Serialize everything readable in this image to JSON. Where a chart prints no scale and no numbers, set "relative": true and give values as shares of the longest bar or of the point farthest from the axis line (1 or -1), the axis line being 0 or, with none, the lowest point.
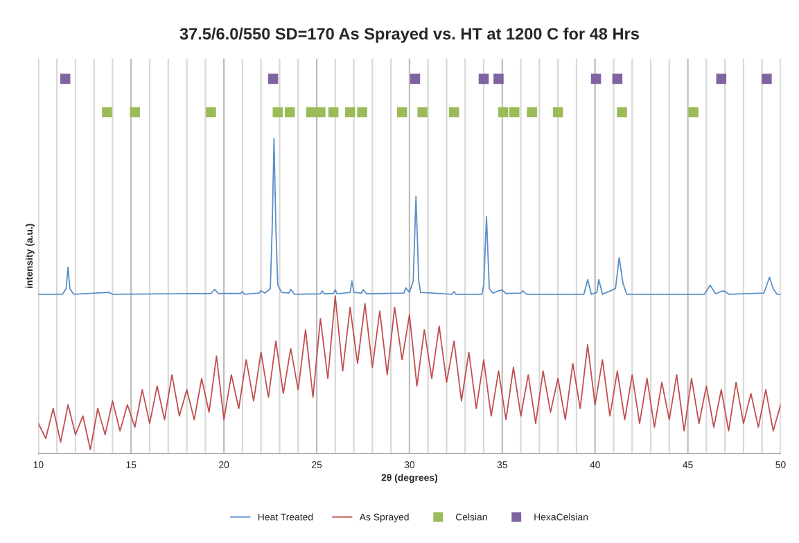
{
  "chart_data": {
    "type": "line",
    "title": "37.5/6.0/550 SD=170 As Sprayed vs. HT at 1200 C for 48 Hrs",
    "xlabel": "2θ (degrees)",
    "ylabel": "intensity (a.u.)",
    "relative": true,
    "xlim": [
      10,
      50
    ],
    "xticks": [
      10,
      {
        "value": 11,
        "label": null
      },
      {
        "value": 12,
        "label": null
      },
      {
        "value": 13,
        "label": null
      },
      {
        "value": 14,
        "label": null
      },
      15,
      {
        "value": 16,
        "label": null
      },
      {
        "value": 17,
        "label": null
      },
      {
        "value": 18,
        "label": null
      },
      {
        "value": 19,
        "label": null
      },
      20,
      {
        "value": 21,
        "label": null
      },
      {
        "value": 22,
        "label": null
      },
      {
        "value": 23,
        "label": null
      },
      {
        "value": 24,
        "label": null
      },
      25,
      {
        "value": 26,
        "label": null
      },
      {
        "value": 27,
        "label": null
      },
      {
        "value": 28,
        "label": null
      },
      {
        "value": 29,
        "label": null
      },
      30,
      {
        "value": 31,
        "label": null
      },
      {
        "value": 32,
        "label": null
      },
      {
        "value": 33,
        "label": null
      },
      {
        "value": 34,
        "label": null
      },
      35,
      {
        "value": 36,
        "label": null
      },
      {
        "value": 37,
        "label": null
      },
      {
        "value": 38,
        "label": null
      },
      {
        "value": 39,
        "label": null
      },
      40,
      {
        "value": 41,
        "label": null
      },
      {
        "value": 42,
        "label": null
      },
      {
        "value": 43,
        "label": null
      },
      {
        "value": 44,
        "label": null
      },
      45,
      {
        "value": 46,
        "label": null
      },
      {
        "value": 47,
        "label": null
      },
      {
        "value": 48,
        "label": null
      },
      {
        "value": 49,
        "label": null
      },
      50
    ],
    "grid": "x",
    "legend": "bottom",
    "series": [
      {
        "name": "Heat Treated",
        "color": "#5b8fc9",
        "x": [
          10,
          11.3,
          11.5,
          11.6,
          11.7,
          11.9,
          13.8,
          14,
          19.3,
          19.5,
          19.7,
          20.9,
          21.0,
          21.1,
          21.9,
          22.0,
          22.2,
          22.5,
          22.6,
          22.7,
          22.8,
          22.9,
          23.1,
          23.5,
          23.6,
          23.8,
          25.2,
          25.3,
          25.4,
          25.9,
          26.0,
          26.1,
          26.8,
          26.9,
          27.0,
          27.4,
          27.5,
          27.7,
          29.7,
          29.8,
          30.0,
          30.2,
          30.35,
          30.5,
          30.6,
          32.3,
          32.4,
          32.5,
          33.9,
          34.0,
          34.15,
          34.3,
          34.5,
          34.8,
          35.0,
          35.2,
          36.0,
          36.1,
          36.3,
          39.4,
          39.6,
          39.8,
          40.1,
          40.2,
          40.4,
          41.1,
          41.3,
          41.5,
          41.7,
          45.9,
          46.2,
          46.5,
          46.8,
          47.0,
          47.2,
          49.1,
          49.4,
          49.6,
          49.8,
          50
        ],
        "values": [
          0.425,
          0.425,
          0.44,
          0.497,
          0.44,
          0.425,
          0.43,
          0.425,
          0.427,
          0.438,
          0.427,
          0.427,
          0.432,
          0.425,
          0.428,
          0.435,
          0.428,
          0.44,
          0.6,
          0.841,
          0.6,
          0.45,
          0.43,
          0.428,
          0.438,
          0.425,
          0.426,
          0.434,
          0.426,
          0.427,
          0.437,
          0.426,
          0.43,
          0.46,
          0.43,
          0.428,
          0.437,
          0.426,
          0.428,
          0.442,
          0.43,
          0.46,
          0.686,
          0.46,
          0.43,
          0.425,
          0.432,
          0.425,
          0.425,
          0.45,
          0.632,
          0.44,
          0.428,
          0.434,
          0.436,
          0.427,
          0.428,
          0.434,
          0.425,
          0.425,
          0.464,
          0.425,
          0.43,
          0.464,
          0.425,
          0.44,
          0.523,
          0.455,
          0.425,
          0.425,
          0.449,
          0.426,
          0.433,
          0.433,
          0.425,
          0.428,
          0.47,
          0.44,
          0.425,
          0.425
        ]
      },
      {
        "name": "As Sprayed",
        "color": "#c0504d",
        "x": [
          10.0,
          10.4,
          10.8,
          11.2,
          11.6,
          12.0,
          12.4,
          12.8,
          13.2,
          13.6,
          14.0,
          14.4,
          14.8,
          15.2,
          15.6,
          16.0,
          16.4,
          16.8,
          17.2,
          17.6,
          18.0,
          18.4,
          18.8,
          19.2,
          19.6,
          20.0,
          20.4,
          20.8,
          21.2,
          21.6,
          22.0,
          22.4,
          22.8,
          23.2,
          23.6,
          24.0,
          24.4,
          24.8,
          25.2,
          25.6,
          26.0,
          26.4,
          26.8,
          27.2,
          27.6,
          28.0,
          28.4,
          28.8,
          29.2,
          29.6,
          30.0,
          30.4,
          30.8,
          31.2,
          31.6,
          32.0,
          32.4,
          32.8,
          33.2,
          33.6,
          34.0,
          34.4,
          34.8,
          35.2,
          35.6,
          36.0,
          36.4,
          36.8,
          37.2,
          37.6,
          38.0,
          38.4,
          38.8,
          39.2,
          39.6,
          40.0,
          40.4,
          40.8,
          41.2,
          41.6,
          42.0,
          42.4,
          42.8,
          43.2,
          43.6,
          44.0,
          44.4,
          44.8,
          45.2,
          45.6,
          46.0,
          46.4,
          46.8,
          47.2,
          47.6,
          48.0,
          48.4,
          48.8,
          49.2,
          49.6,
          50.0
        ],
        "values": [
          0.08,
          0.04,
          0.12,
          0.03,
          0.13,
          0.05,
          0.1,
          0.01,
          0.12,
          0.05,
          0.14,
          0.06,
          0.13,
          0.07,
          0.17,
          0.08,
          0.18,
          0.09,
          0.21,
          0.1,
          0.17,
          0.09,
          0.2,
          0.11,
          0.26,
          0.09,
          0.21,
          0.12,
          0.25,
          0.14,
          0.27,
          0.15,
          0.3,
          0.16,
          0.28,
          0.17,
          0.33,
          0.15,
          0.36,
          0.2,
          0.42,
          0.22,
          0.39,
          0.24,
          0.4,
          0.23,
          0.38,
          0.21,
          0.39,
          0.25,
          0.37,
          0.18,
          0.33,
          0.2,
          0.34,
          0.19,
          0.3,
          0.14,
          0.27,
          0.12,
          0.25,
          0.1,
          0.22,
          0.09,
          0.23,
          0.1,
          0.21,
          0.08,
          0.22,
          0.11,
          0.2,
          0.09,
          0.24,
          0.12,
          0.29,
          0.13,
          0.25,
          0.1,
          0.22,
          0.09,
          0.21,
          0.08,
          0.2,
          0.07,
          0.19,
          0.09,
          0.21,
          0.06,
          0.2,
          0.08,
          0.18,
          0.07,
          0.17,
          0.06,
          0.19,
          0.08,
          0.16,
          0.07,
          0.17,
          0.06,
          0.13
        ]
      },
      {
        "name": "Celsian",
        "type": "scatter",
        "marker": "square",
        "color": "#9bbb59",
        "x": [
          13.7,
          15.2,
          19.3,
          22.9,
          23.55,
          24.7,
          25.2,
          25.9,
          26.8,
          27.45,
          29.6,
          30.7,
          32.4,
          35.05,
          35.65,
          36.6,
          38.0,
          41.45,
          45.3
        ],
        "values": [
          0.911,
          0.911,
          0.911,
          0.911,
          0.911,
          0.911,
          0.911,
          0.911,
          0.911,
          0.911,
          0.911,
          0.911,
          0.911,
          0.911,
          0.911,
          0.911,
          0.911,
          0.911,
          0.911
        ]
      },
      {
        "name": "HexaCelsian",
        "type": "scatter",
        "marker": "square",
        "color": "#8064a2",
        "x": [
          11.45,
          22.65,
          30.3,
          34.0,
          34.8,
          40.05,
          41.2,
          46.8,
          49.25
        ],
        "values": [
          1,
          1,
          1,
          1,
          1,
          1,
          1,
          1,
          1
        ]
      }
    ]
  }
}
